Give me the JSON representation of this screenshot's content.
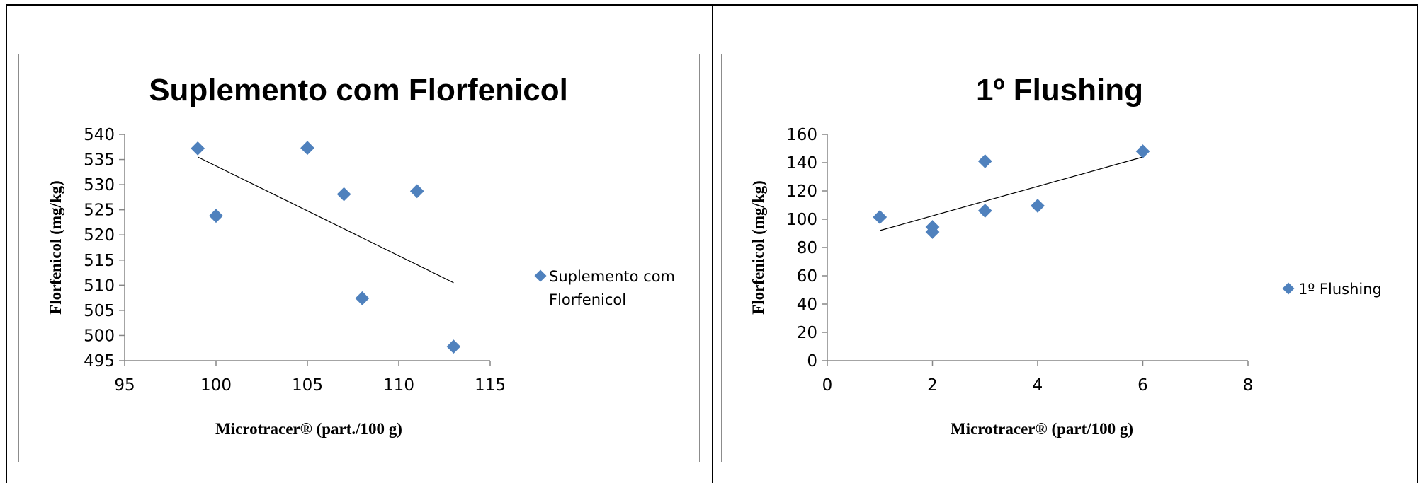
{
  "chart_data": [
    {
      "type": "scatter",
      "title": "Suplemento com Florfenicol",
      "xlabel": "Microtracer® (part./100 g)",
      "ylabel": "Florfenicol (mg/kg)",
      "xlim": [
        95,
        115
      ],
      "ylim": [
        495,
        540
      ],
      "xticks": [
        95,
        100,
        105,
        110,
        115
      ],
      "yticks": [
        495,
        500,
        505,
        510,
        515,
        520,
        525,
        530,
        535,
        540
      ],
      "legend_position": "right",
      "marker_color": "#4f81bd",
      "trendline": {
        "x": [
          99,
          113
        ],
        "y": [
          535.5,
          510.5
        ]
      },
      "series": [
        {
          "name_lines": [
            "Suplemento com",
            "Florfenicol"
          ],
          "x": [
            99,
            100,
            105,
            107,
            108,
            111,
            113
          ],
          "y": [
            537.2,
            523.8,
            537.3,
            528.1,
            507.4,
            528.7,
            497.8
          ]
        }
      ]
    },
    {
      "type": "scatter",
      "title": "1º Flushing",
      "xlabel": "Microtracer® (part/100 g)",
      "ylabel": "Florfenicol (mg/kg)",
      "xlim": [
        0,
        8
      ],
      "ylim": [
        0,
        160
      ],
      "xticks": [
        0,
        2,
        4,
        6,
        8
      ],
      "yticks": [
        0,
        20,
        40,
        60,
        80,
        100,
        120,
        140,
        160
      ],
      "legend_position": "right",
      "marker_color": "#4f81bd",
      "trendline": {
        "x": [
          1,
          6
        ],
        "y": [
          92,
          144
        ]
      },
      "series": [
        {
          "name_lines": [
            "1º Flushing"
          ],
          "x": [
            1,
            2,
            2,
            3,
            3,
            4,
            6
          ],
          "y": [
            101.5,
            91,
            94.5,
            141,
            106,
            109.5,
            148
          ]
        }
      ]
    }
  ]
}
